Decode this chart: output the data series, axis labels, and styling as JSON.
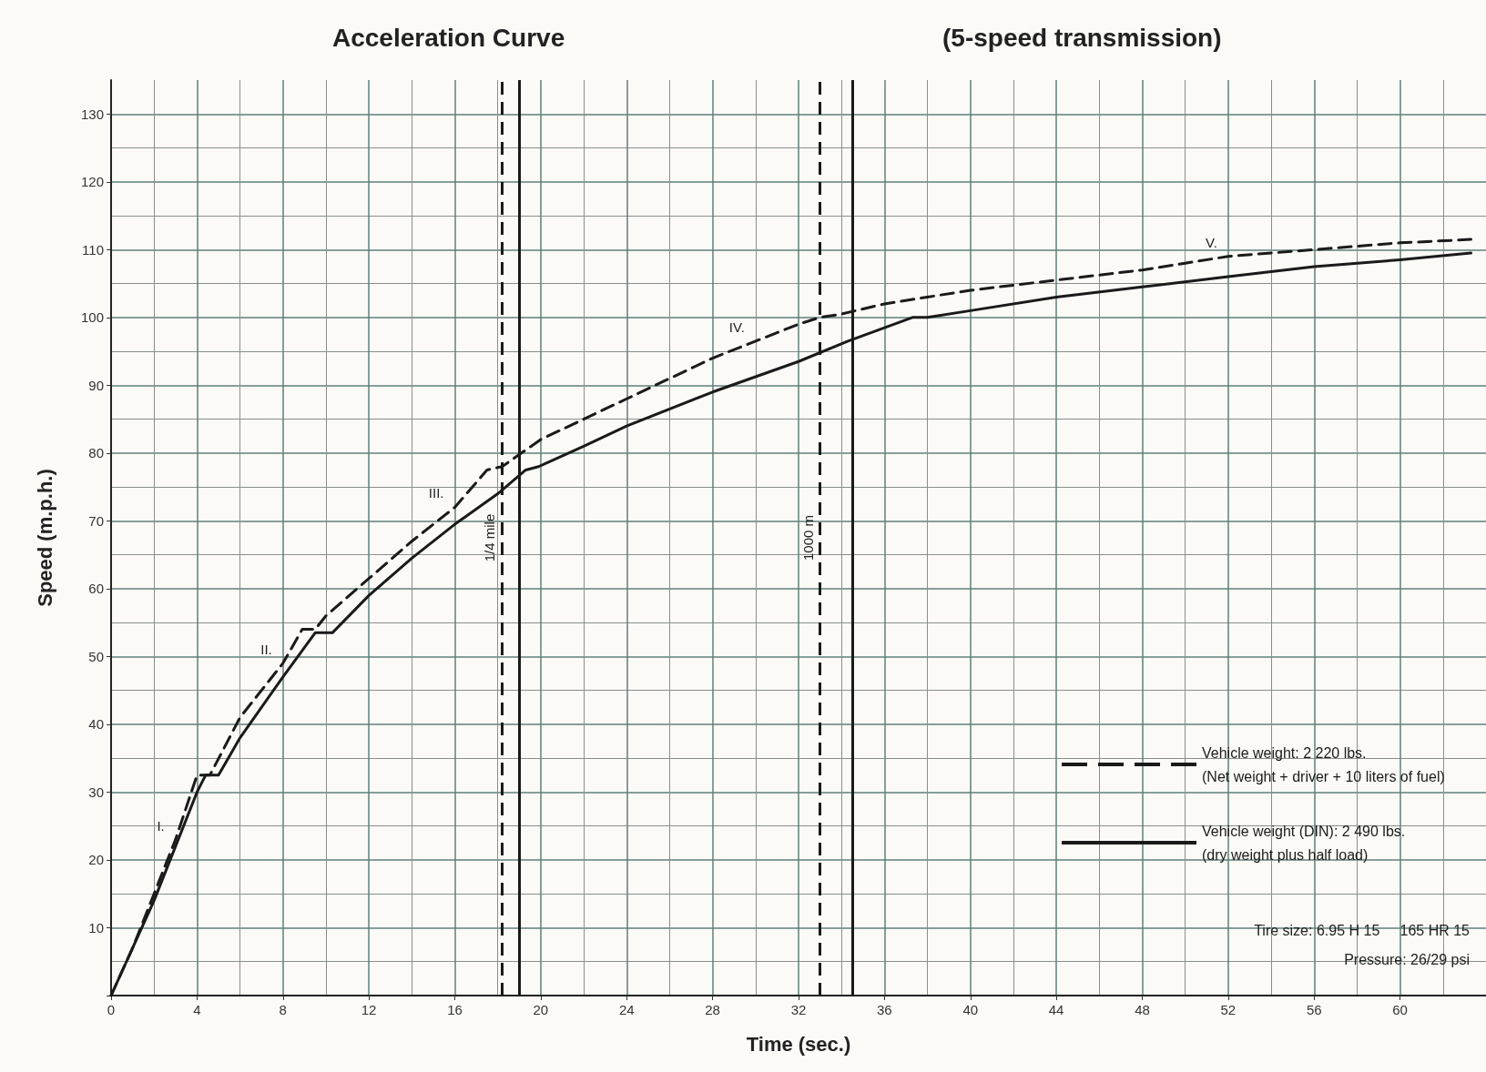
{
  "chart_data": {
    "type": "line",
    "title": "Acceleration Curve",
    "subtitle": "(5-speed transmission)",
    "xlabel": "Time (sec.)",
    "ylabel": "Speed (m.p.h.)",
    "xlim": [
      0,
      64
    ],
    "xticks": [
      0,
      4,
      8,
      12,
      16,
      20,
      24,
      28,
      32,
      36,
      40,
      44,
      48,
      52,
      56,
      60
    ],
    "ylim": [
      0,
      135
    ],
    "yticks": [
      {
        "value": 0,
        "label": null
      },
      10,
      20,
      30,
      40,
      50,
      60,
      70,
      80,
      90,
      100,
      110,
      120,
      130
    ],
    "grid": true,
    "legend": "bottom right",
    "marker": "none",
    "series": [
      {
        "name": "Vehicle weight: 2 220 lbs.\n(Net weight + driver + 10 liters of fuel)",
        "color": "#1a1a1a",
        "line_style": "dashed",
        "x": [
          0,
          1,
          2,
          3,
          4,
          4.6,
          6,
          8,
          8.9,
          9.5,
          10,
          12,
          14,
          16,
          17.5,
          18.2,
          20,
          22,
          24,
          26,
          28,
          30,
          32,
          33,
          34,
          36,
          40,
          44,
          48,
          50,
          52,
          56,
          60,
          63.3
        ],
        "values": [
          0,
          7,
          15,
          23,
          32.5,
          32.5,
          41,
          49,
          54,
          54,
          56,
          61.5,
          67,
          72,
          77.5,
          78,
          82,
          85,
          88,
          91,
          94,
          96.5,
          99,
          100,
          100.5,
          102,
          104,
          105.5,
          107,
          108,
          109,
          110,
          111,
          111.5
        ]
      },
      {
        "name": "Vehicle weight (DIN): 2 490 lbs.\n(dry weight plus half load)",
        "color": "#1a1a1a",
        "line_style": "solid",
        "x": [
          0,
          2,
          4,
          4.4,
          5,
          6,
          8,
          9.5,
          10.3,
          12,
          14,
          16,
          18,
          19.3,
          19.9,
          22,
          24,
          28,
          32,
          34.3,
          37.3,
          38,
          40,
          44,
          48,
          52,
          56,
          60,
          63.3
        ],
        "values": [
          0,
          14,
          30,
          32.5,
          32.5,
          38,
          47,
          53.5,
          53.5,
          59,
          64.5,
          69.5,
          74,
          77.5,
          78,
          81,
          84,
          89,
          93.5,
          96.5,
          100,
          100,
          101,
          103,
          104.5,
          106,
          107.5,
          108.5,
          109.5
        ]
      }
    ],
    "ref_lines": [
      {
        "axis": "x",
        "value": 18.2,
        "label": "1/4 mile",
        "line_style": "dashed"
      },
      {
        "axis": "x",
        "value": 19,
        "line_style": "solid"
      },
      {
        "axis": "x",
        "value": 33,
        "label": "1000 m",
        "line_style": "dashed"
      },
      {
        "axis": "x",
        "value": 34.5,
        "line_style": "solid"
      }
    ],
    "annotations": [
      {
        "text": "I.",
        "x": 3,
        "y": 23
      },
      {
        "text": "II.",
        "x": 8,
        "y": 49
      },
      {
        "text": "III.",
        "x": 16,
        "y": 72
      },
      {
        "text": "IV.",
        "x": 30,
        "y": 96.5
      },
      {
        "text": "V.",
        "x": 52,
        "y": 109
      },
      "Tire size: 6.95 H 15     165 HR 15",
      "Pressure: 26/29 psi"
    ]
  }
}
